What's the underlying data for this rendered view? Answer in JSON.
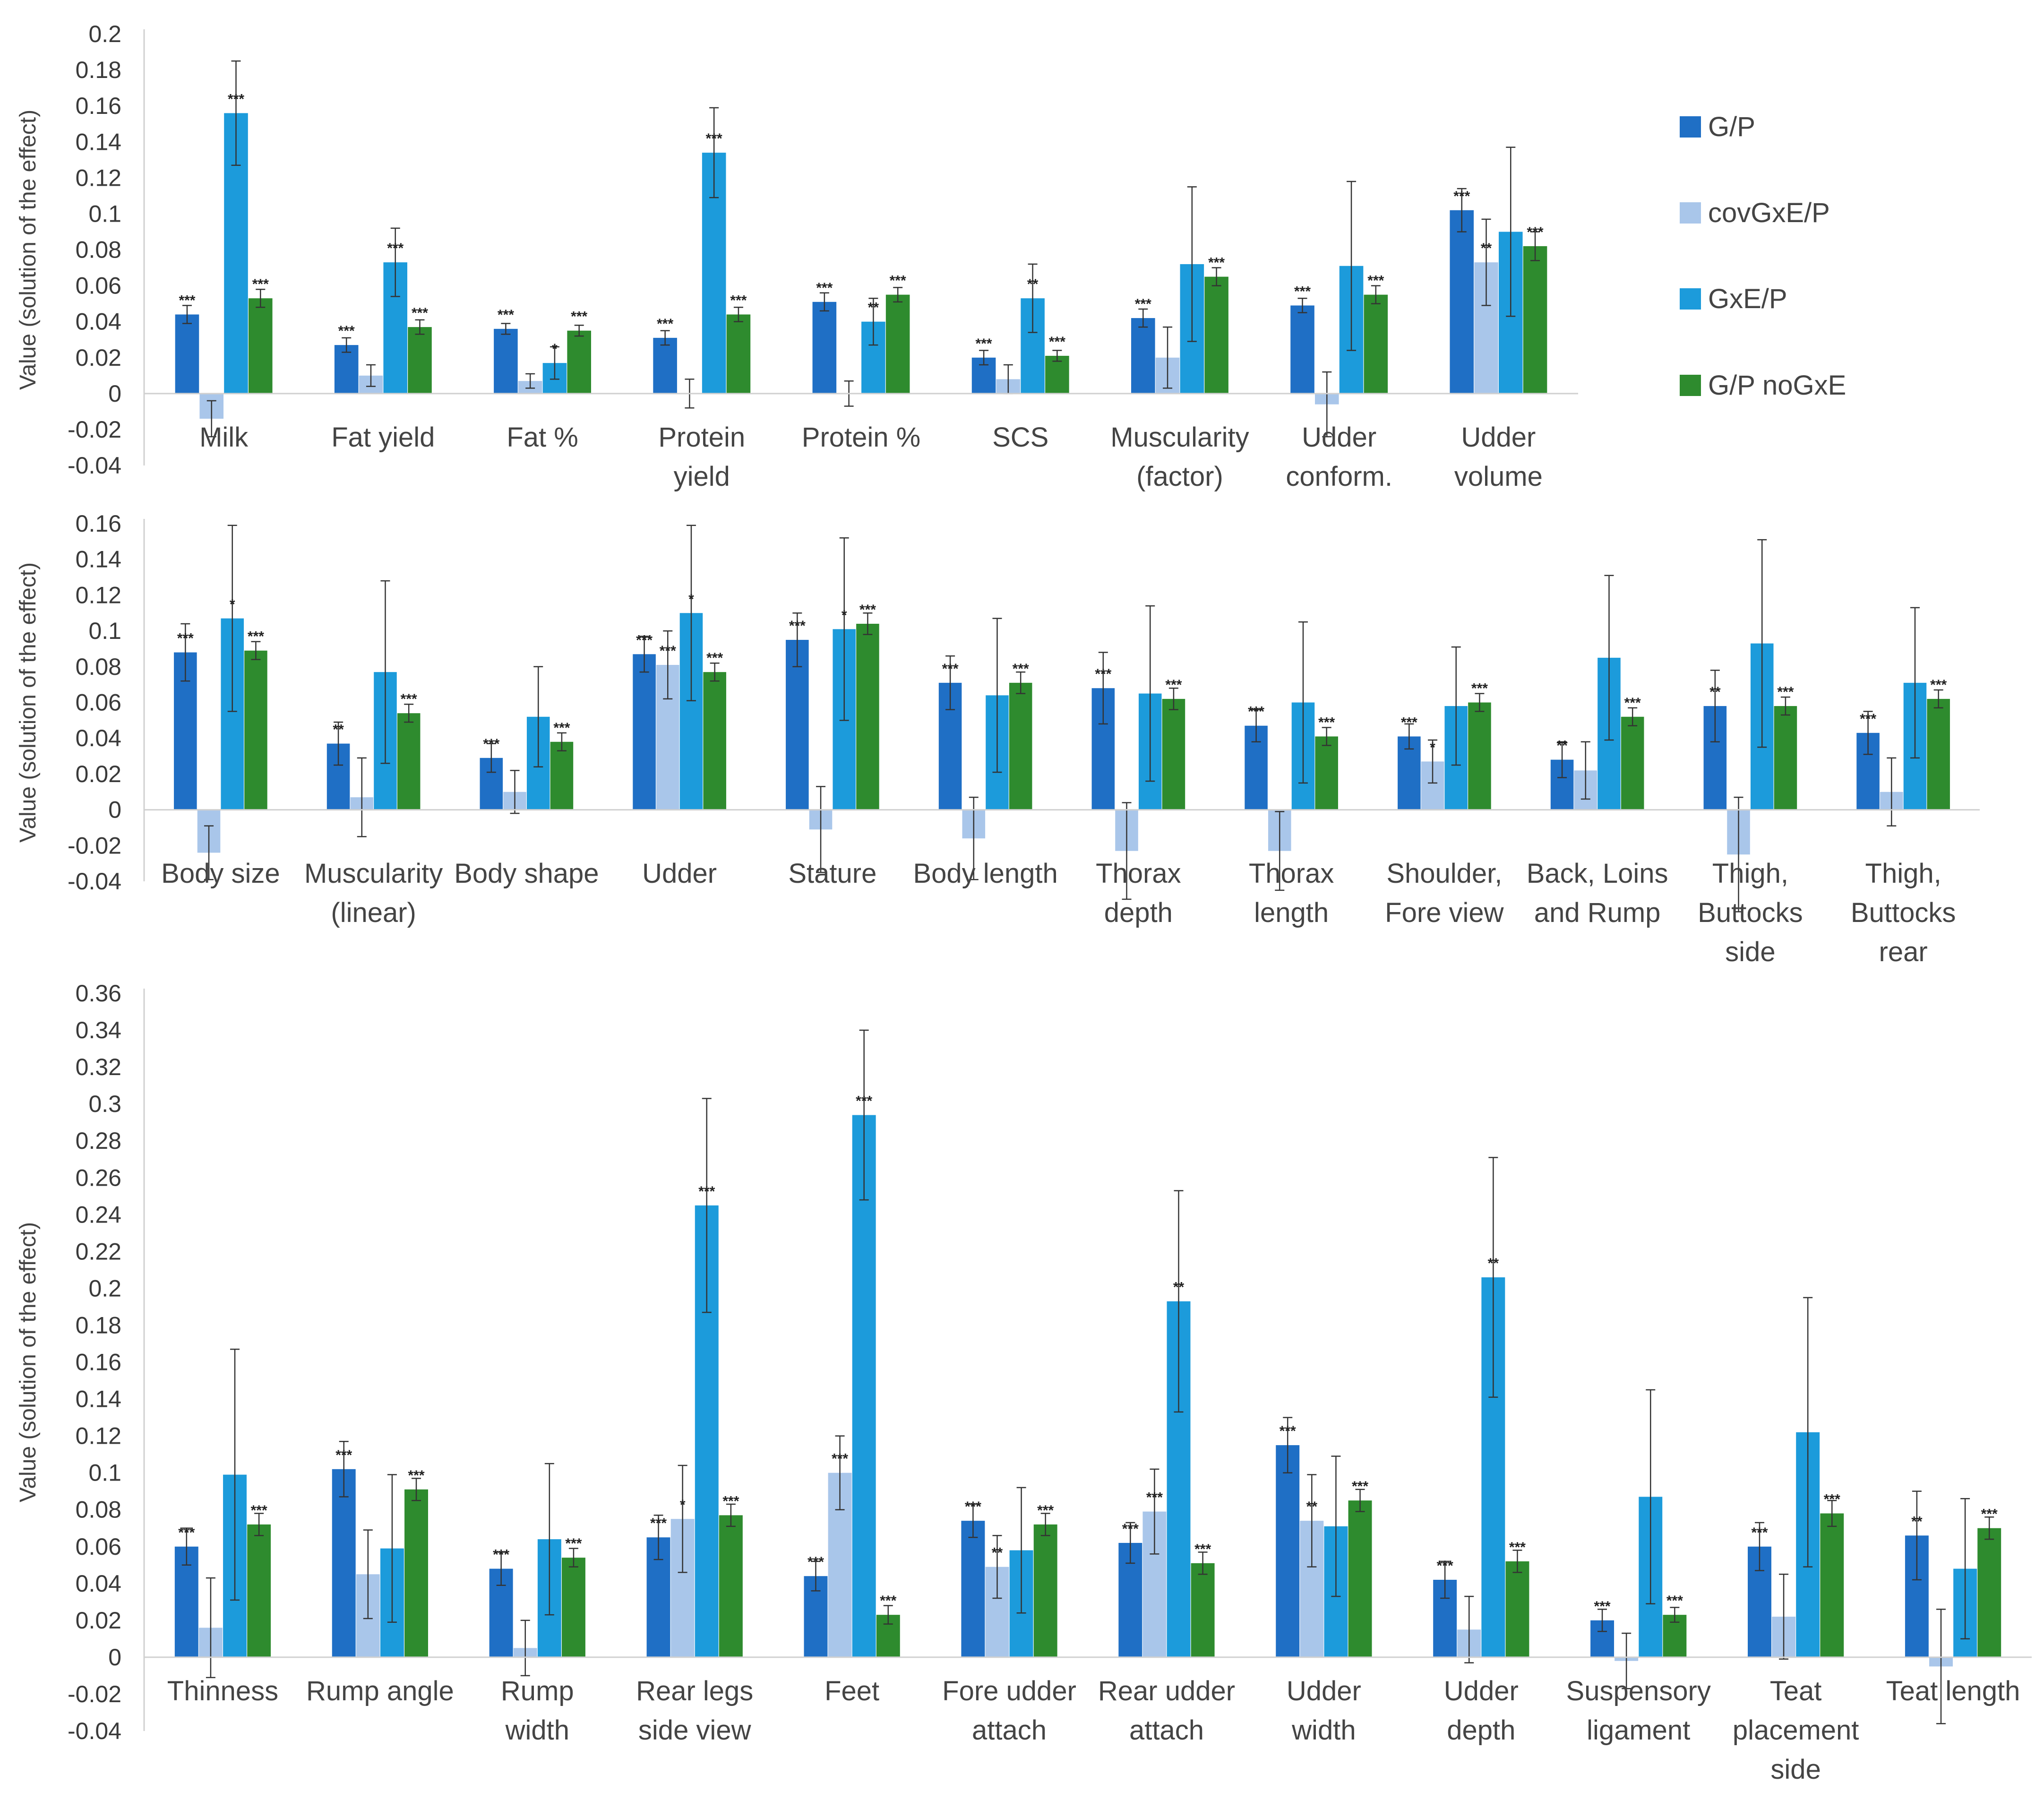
{
  "legend": [
    {
      "name": "G/P",
      "color": "#1f6fc5"
    },
    {
      "name": "covGxE/P",
      "color": "#a9c6ea"
    },
    {
      "name": "GxE/P",
      "color": "#1c9bdb"
    },
    {
      "name": "G/P  noGxE",
      "color": "#2e8b2e"
    }
  ],
  "chart_data": [
    {
      "type": "bar",
      "ylabel": "Value (solution of the effect)",
      "ylim": [
        -0.04,
        0.2
      ],
      "yticks": [
        -0.04,
        -0.02,
        0,
        0.02,
        0.04,
        0.06,
        0.08,
        0.1,
        0.12,
        0.14,
        0.16,
        0.18,
        0.2
      ],
      "categories": [
        [
          "Milk"
        ],
        [
          "Fat yield"
        ],
        [
          "Fat %"
        ],
        [
          "Protein",
          "yield"
        ],
        [
          "Protein %"
        ],
        [
          "SCS"
        ],
        [
          "Muscularity",
          "(factor)"
        ],
        [
          "Udder",
          "conform."
        ],
        [
          "Udder",
          "volume"
        ]
      ],
      "series": [
        {
          "name": "G/P",
          "values": [
            0.044,
            0.027,
            0.036,
            0.031,
            0.051,
            0.02,
            0.042,
            0.049,
            0.102
          ],
          "errors": [
            0.005,
            0.004,
            0.003,
            0.004,
            0.005,
            0.004,
            0.005,
            0.004,
            0.012
          ],
          "sig": [
            "***",
            "***",
            "***",
            "***",
            "***",
            "***",
            "***",
            "***",
            "***"
          ]
        },
        {
          "name": "covGxE/P",
          "values": [
            -0.014,
            0.01,
            0.007,
            0,
            0,
            0.008,
            0.02,
            -0.006,
            0.073
          ],
          "errors": [
            0.01,
            0.006,
            0.004,
            0.008,
            0.007,
            0.008,
            0.017,
            0.018,
            0.024
          ],
          "sig": [
            "",
            "",
            "",
            "",
            "",
            "",
            "",
            "",
            "**"
          ]
        },
        {
          "name": "GxE/P",
          "values": [
            0.156,
            0.073,
            0.017,
            0.134,
            0.04,
            0.053,
            0.072,
            0.071,
            0.09
          ],
          "errors": [
            0.029,
            0.019,
            0.009,
            0.025,
            0.013,
            0.019,
            0.043,
            0.047,
            0.047
          ],
          "sig": [
            "***",
            "***",
            "*",
            "***",
            "**",
            "**",
            "",
            "",
            ""
          ]
        },
        {
          "name": "G/P  noGxE",
          "values": [
            0.053,
            0.037,
            0.035,
            0.044,
            0.055,
            0.021,
            0.065,
            0.055,
            0.082
          ],
          "errors": [
            0.005,
            0.004,
            0.003,
            0.004,
            0.004,
            0.003,
            0.005,
            0.005,
            0.008
          ],
          "sig": [
            "***",
            "***",
            "***",
            "***",
            "***",
            "***",
            "***",
            "***",
            "***"
          ]
        }
      ]
    },
    {
      "type": "bar",
      "ylabel": "Value (solution of the effect)",
      "ylim": [
        -0.04,
        0.16
      ],
      "yticks": [
        -0.04,
        -0.02,
        0,
        0.02,
        0.04,
        0.06,
        0.08,
        0.1,
        0.12,
        0.14,
        0.16
      ],
      "categories": [
        [
          "Body size"
        ],
        [
          "Muscularity",
          "(linear)"
        ],
        [
          "Body shape"
        ],
        [
          "Udder"
        ],
        [
          "Stature"
        ],
        [
          "Body length"
        ],
        [
          "Thorax",
          "depth"
        ],
        [
          "Thorax",
          "length"
        ],
        [
          "Shoulder,",
          "Fore view"
        ],
        [
          "Back, Loins",
          "and Rump"
        ],
        [
          "Thigh,",
          "Buttocks",
          "side"
        ],
        [
          "Thigh,",
          "Buttocks",
          "rear"
        ]
      ],
      "series": [
        {
          "name": "G/P",
          "values": [
            0.088,
            0.037,
            0.029,
            0.087,
            0.095,
            0.071,
            0.068,
            0.047,
            0.041,
            0.028,
            0.058,
            0.043
          ],
          "errors": [
            0.016,
            0.012,
            0.008,
            0.01,
            0.015,
            0.015,
            0.02,
            0.009,
            0.007,
            0.01,
            0.02,
            0.012
          ],
          "sig": [
            "***",
            "**",
            "***",
            "***",
            "***",
            "***",
            "***",
            "***",
            "***",
            "**",
            "**",
            "***"
          ]
        },
        {
          "name": "covGxE/P",
          "values": [
            -0.024,
            0.007,
            0.01,
            0.081,
            -0.011,
            -0.016,
            -0.023,
            -0.023,
            0.027,
            0.022,
            -0.025,
            0.01
          ],
          "errors": [
            0.015,
            0.022,
            0.012,
            0.019,
            0.024,
            0.023,
            0.027,
            0.022,
            0.012,
            0.016,
            0.032,
            0.019
          ],
          "sig": [
            "",
            "",
            "",
            "***",
            "",
            "",
            "",
            "",
            "*",
            "",
            "",
            ""
          ]
        },
        {
          "name": "GxE/P",
          "values": [
            0.107,
            0.077,
            0.052,
            0.11,
            0.101,
            0.064,
            0.065,
            0.06,
            0.058,
            0.085,
            0.093,
            0.071
          ],
          "errors": [
            0.052,
            0.051,
            0.028,
            0.049,
            0.051,
            0.043,
            0.049,
            0.045,
            0.033,
            0.046,
            0.058,
            0.042
          ],
          "sig": [
            "*",
            "",
            "",
            "*",
            "*",
            "",
            "",
            "",
            "",
            "",
            "",
            ""
          ]
        },
        {
          "name": "G/P  noGxE",
          "values": [
            0.089,
            0.054,
            0.038,
            0.077,
            0.104,
            0.071,
            0.062,
            0.041,
            0.06,
            0.052,
            0.058,
            0.062
          ],
          "errors": [
            0.005,
            0.005,
            0.005,
            0.005,
            0.006,
            0.006,
            0.006,
            0.005,
            0.005,
            0.005,
            0.005,
            0.005
          ],
          "sig": [
            "***",
            "***",
            "***",
            "***",
            "***",
            "***",
            "***",
            "***",
            "***",
            "***",
            "***",
            "***"
          ]
        }
      ]
    },
    {
      "type": "bar",
      "ylabel": "Value (solution of the effect)",
      "ylim": [
        -0.04,
        0.36
      ],
      "yticks": [
        -0.04,
        -0.02,
        0,
        0.02,
        0.04,
        0.06,
        0.08,
        0.1,
        0.12,
        0.14,
        0.16,
        0.18,
        0.2,
        0.22,
        0.24,
        0.26,
        0.28,
        0.3,
        0.32,
        0.34,
        0.36
      ],
      "categories": [
        [
          "Thinness"
        ],
        [
          "Rump angle"
        ],
        [
          "Rump",
          "width"
        ],
        [
          "Rear legs",
          "side view"
        ],
        [
          "Feet"
        ],
        [
          "Fore udder",
          "attach"
        ],
        [
          "Rear udder",
          "attach"
        ],
        [
          "Udder",
          "width"
        ],
        [
          "Udder",
          "depth"
        ],
        [
          "Suspensory",
          "ligament"
        ],
        [
          "Teat",
          "placement",
          "side"
        ],
        [
          "Teat length"
        ]
      ],
      "series": [
        {
          "name": "G/P",
          "values": [
            0.06,
            0.102,
            0.048,
            0.065,
            0.044,
            0.074,
            0.062,
            0.115,
            0.042,
            0.02,
            0.06,
            0.066
          ],
          "errors": [
            0.01,
            0.015,
            0.009,
            0.012,
            0.008,
            0.009,
            0.011,
            0.015,
            0.01,
            0.006,
            0.013,
            0.024
          ],
          "sig": [
            "***",
            "***",
            "***",
            "***",
            "***",
            "***",
            "***",
            "***",
            "***",
            "***",
            "***",
            "**"
          ]
        },
        {
          "name": "covGxE/P",
          "values": [
            0.016,
            0.045,
            0.005,
            0.075,
            0.1,
            0.049,
            0.079,
            0.074,
            0.015,
            -0.002,
            0.022,
            -0.005
          ],
          "errors": [
            0.027,
            0.024,
            0.015,
            0.029,
            0.02,
            0.017,
            0.023,
            0.025,
            0.018,
            0.015,
            0.023,
            0.031
          ],
          "sig": [
            "",
            "",
            "",
            "*",
            "***",
            "**",
            "***",
            "**",
            "",
            "",
            "",
            ""
          ]
        },
        {
          "name": "GxE/P",
          "values": [
            0.099,
            0.059,
            0.064,
            0.245,
            0.294,
            0.058,
            0.193,
            0.071,
            0.206,
            0.087,
            0.122,
            0.048
          ],
          "errors": [
            0.068,
            0.04,
            0.041,
            0.058,
            0.046,
            0.034,
            0.06,
            0.038,
            0.065,
            0.058,
            0.073,
            0.038
          ],
          "sig": [
            "",
            "",
            "",
            "***",
            "***",
            "",
            "**",
            "",
            "**",
            "",
            "",
            ""
          ]
        },
        {
          "name": "G/P  noGxE",
          "values": [
            0.072,
            0.091,
            0.054,
            0.077,
            0.023,
            0.072,
            0.051,
            0.085,
            0.052,
            0.023,
            0.078,
            0.07
          ],
          "errors": [
            0.006,
            0.006,
            0.005,
            0.006,
            0.005,
            0.006,
            0.006,
            0.006,
            0.006,
            0.004,
            0.007,
            0.006
          ],
          "sig": [
            "***",
            "***",
            "***",
            "***",
            "***",
            "***",
            "***",
            "***",
            "***",
            "***",
            "***",
            "***"
          ]
        }
      ]
    }
  ]
}
